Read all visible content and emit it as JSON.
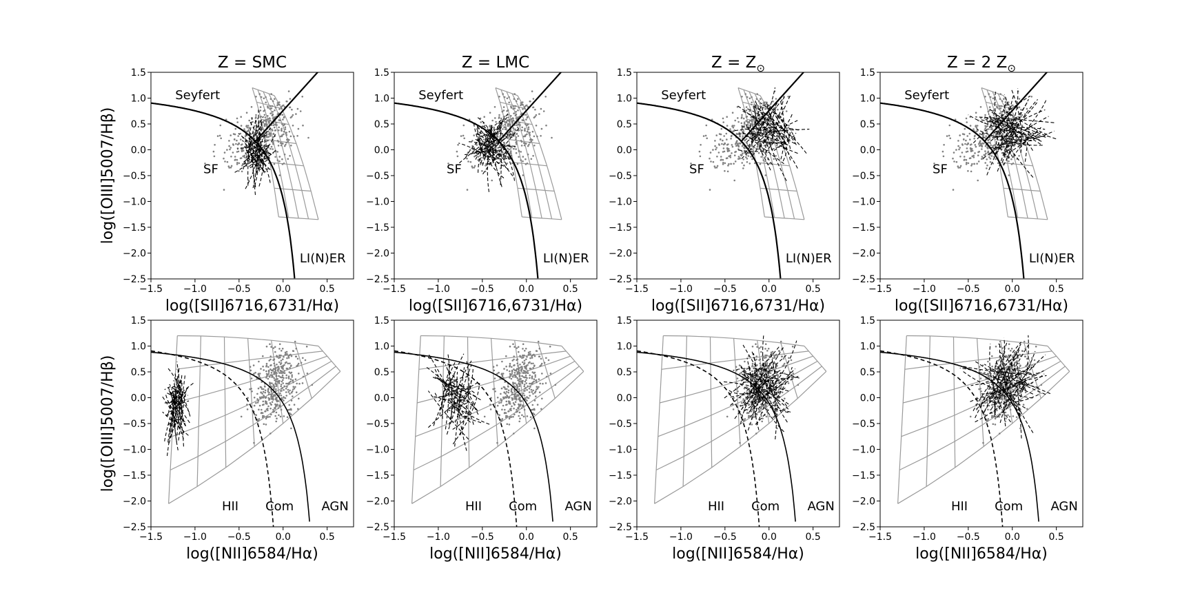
{
  "chart_data": [
    {
      "type": "scatter",
      "title": "Z = SMC",
      "xlabel": "log([SII]6716,6731/Hα)",
      "ylabel": "log([OIII]5007/Hβ)",
      "xlim": [
        -1.5,
        0.8
      ],
      "ylim": [
        -2.5,
        1.5
      ],
      "xticks": [
        "−1.5",
        "−1.0",
        "−0.5",
        "0.0",
        "0.5"
      ],
      "yticks": [
        "1.5",
        "1.0",
        "0.5",
        "0.0",
        "−0.5",
        "−1.0",
        "−1.5",
        "−2.0",
        "−2.5"
      ],
      "diagram": "SII",
      "region_labels": [
        "Seyfert",
        "SF",
        "LI(N)ER"
      ],
      "model_center": [
        -0.3,
        0.0
      ],
      "model_spread": [
        0.15,
        0.35
      ],
      "series": [
        {
          "color": "#808080",
          "marker": "point"
        },
        {
          "color": "#000000",
          "style": "dashed"
        },
        {
          "color": "#999999",
          "style": "grid"
        }
      ]
    },
    {
      "type": "scatter",
      "title": "Z = LMC",
      "xlabel": "log([SII]6716,6731/Hα)",
      "ylabel": "",
      "xlim": [
        -1.5,
        0.8
      ],
      "ylim": [
        -2.5,
        1.5
      ],
      "xticks": [
        "−1.5",
        "−1.0",
        "−0.5",
        "0.0",
        "0.5"
      ],
      "yticks": [
        "1.5",
        "1.0",
        "0.5",
        "0.0",
        "−0.5",
        "−1.0",
        "−1.5",
        "−2.0",
        "−2.5"
      ],
      "diagram": "SII",
      "region_labels": [
        "Seyfert",
        "SF",
        "LI(N)ER"
      ],
      "model_center": [
        -0.4,
        0.05
      ],
      "model_spread": [
        0.25,
        0.35
      ],
      "series": [
        {
          "color": "#808080",
          "marker": "point"
        },
        {
          "color": "#000000",
          "style": "dashed"
        },
        {
          "color": "#999999",
          "style": "grid"
        }
      ]
    },
    {
      "type": "scatter",
      "title": "Z = Z",
      "title_sub": "⊙",
      "xlabel": "log([SII]6716,6731/Hα)",
      "ylabel": "",
      "xlim": [
        -1.5,
        0.8
      ],
      "ylim": [
        -2.5,
        1.5
      ],
      "xticks": [
        "−1.5",
        "−1.0",
        "−0.5",
        "0.0",
        "0.5"
      ],
      "yticks": [
        "1.5",
        "1.0",
        "0.5",
        "0.0",
        "−0.5",
        "−1.0",
        "−1.5",
        "−2.0",
        "−2.5"
      ],
      "diagram": "SII",
      "region_labels": [
        "Seyfert",
        "SF",
        "LI(N)ER"
      ],
      "model_center": [
        0.0,
        0.3
      ],
      "model_spread": [
        0.3,
        0.4
      ],
      "series": [
        {
          "color": "#808080",
          "marker": "point"
        },
        {
          "color": "#000000",
          "style": "dashed"
        },
        {
          "color": "#999999",
          "style": "grid"
        }
      ]
    },
    {
      "type": "scatter",
      "title": "Z = 2 Z",
      "title_sub": "⊙",
      "xlabel": "log([SII]6716,6731/Hα)",
      "ylabel": "",
      "xlim": [
        -1.5,
        0.8
      ],
      "ylim": [
        -2.5,
        1.5
      ],
      "xticks": [
        "−1.5",
        "−1.0",
        "−0.5",
        "0.0",
        "0.5"
      ],
      "yticks": [
        "1.5",
        "1.0",
        "0.5",
        "0.0",
        "−0.5",
        "−1.0",
        "−1.5",
        "−2.0",
        "−2.5"
      ],
      "diagram": "SII",
      "region_labels": [
        "Seyfert",
        "SF",
        "LI(N)ER"
      ],
      "model_center": [
        0.0,
        0.35
      ],
      "model_spread": [
        0.35,
        0.4
      ],
      "series": [
        {
          "color": "#808080",
          "marker": "point"
        },
        {
          "color": "#000000",
          "style": "dashed"
        },
        {
          "color": "#999999",
          "style": "grid"
        }
      ]
    },
    {
      "type": "scatter",
      "title": "",
      "xlabel": "log([NII]6584/Hα)",
      "ylabel": "log([OIII]5007/Hβ)",
      "xlim": [
        -1.5,
        0.8
      ],
      "ylim": [
        -2.5,
        1.5
      ],
      "xticks": [
        "−1.5",
        "−1.0",
        "−0.5",
        "0.0",
        "0.5"
      ],
      "yticks": [
        "1.5",
        "1.0",
        "0.5",
        "0.0",
        "−0.5",
        "−1.0",
        "−1.5",
        "−2.0",
        "−2.5"
      ],
      "diagram": "NII",
      "region_labels": [
        "HII",
        "Com",
        "AGN"
      ],
      "model_center": [
        -1.2,
        -0.2
      ],
      "model_spread": [
        0.12,
        0.45
      ],
      "series": [
        {
          "color": "#808080",
          "marker": "point"
        },
        {
          "color": "#000000",
          "style": "dashed"
        },
        {
          "color": "#999999",
          "style": "grid"
        }
      ]
    },
    {
      "type": "scatter",
      "title": "",
      "xlabel": "log([NII]6584/Hα)",
      "ylabel": "",
      "xlim": [
        -1.5,
        0.8
      ],
      "ylim": [
        -2.5,
        1.5
      ],
      "xticks": [
        "−1.5",
        "−1.0",
        "−0.5",
        "0.0",
        "0.5"
      ],
      "yticks": [
        "1.5",
        "1.0",
        "0.5",
        "0.0",
        "−0.5",
        "−1.0",
        "−1.5",
        "−2.0",
        "−2.5"
      ],
      "diagram": "NII",
      "region_labels": [
        "HII",
        "Com",
        "AGN"
      ],
      "model_center": [
        -0.8,
        -0.05
      ],
      "model_spread": [
        0.25,
        0.45
      ],
      "series": [
        {
          "color": "#808080",
          "marker": "point"
        },
        {
          "color": "#000000",
          "style": "dashed"
        },
        {
          "color": "#999999",
          "style": "grid"
        }
      ]
    },
    {
      "type": "scatter",
      "title": "",
      "xlabel": "log([NII]6584/Hα)",
      "ylabel": "",
      "xlim": [
        -1.5,
        0.8
      ],
      "ylim": [
        -2.5,
        1.5
      ],
      "xticks": [
        "−1.5",
        "−1.0",
        "−0.5",
        "0.0",
        "0.5"
      ],
      "yticks": [
        "1.5",
        "1.0",
        "0.5",
        "0.0",
        "−0.5",
        "−1.0",
        "−1.5",
        "−2.0",
        "−2.5"
      ],
      "diagram": "NII",
      "region_labels": [
        "HII",
        "Com",
        "AGN"
      ],
      "model_center": [
        -0.05,
        0.2
      ],
      "model_spread": [
        0.3,
        0.45
      ],
      "series": [
        {
          "color": "#808080",
          "marker": "point"
        },
        {
          "color": "#000000",
          "style": "dashed"
        },
        {
          "color": "#999999",
          "style": "grid"
        }
      ]
    },
    {
      "type": "scatter",
      "title": "",
      "xlabel": "log([NII]6584/Hα)",
      "ylabel": "",
      "xlim": [
        -1.5,
        0.8
      ],
      "ylim": [
        -2.5,
        1.5
      ],
      "xticks": [
        "−1.5",
        "−1.0",
        "−0.5",
        "0.0",
        "0.5"
      ],
      "yticks": [
        "1.5",
        "1.0",
        "0.5",
        "0.0",
        "−0.5",
        "−1.0",
        "−1.5",
        "−2.0",
        "−2.5"
      ],
      "diagram": "NII",
      "region_labels": [
        "HII",
        "Com",
        "AGN"
      ],
      "model_center": [
        -0.05,
        0.25
      ],
      "model_spread": [
        0.35,
        0.45
      ],
      "series": [
        {
          "color": "#808080",
          "marker": "point"
        },
        {
          "color": "#000000",
          "style": "dashed"
        },
        {
          "color": "#999999",
          "style": "grid"
        }
      ]
    }
  ]
}
